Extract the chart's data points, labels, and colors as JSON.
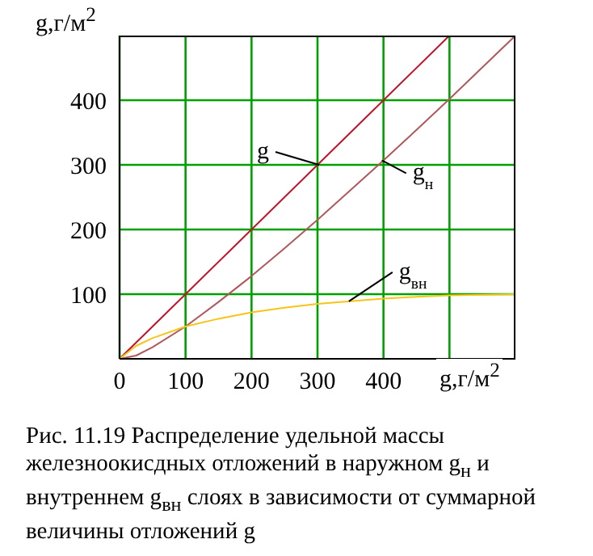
{
  "chart_data": {
    "type": "line",
    "xlabel": "g,г/м$^{2}$",
    "ylabel": "g,г/м$^{2}$",
    "xlim": [
      0,
      600
    ],
    "ylim": [
      0,
      500
    ],
    "xticks": [
      0,
      100,
      200,
      300,
      400,
      {
        "value": 500,
        "label": null
      }
    ],
    "yticks": [
      100,
      200,
      300,
      400
    ],
    "grid": true,
    "marker": "none",
    "line_style": "solid",
    "series": [
      {
        "name": "g",
        "color": "#c0142c",
        "x": [
          0,
          100,
          200,
          300,
          400,
          500
        ],
        "values": [
          0,
          100,
          200,
          300,
          400,
          500
        ]
      },
      {
        "name": "g$_{н}$",
        "color": "#b0585c",
        "x": [
          0,
          25,
          50,
          100,
          150,
          200,
          250,
          300,
          350,
          400,
          450,
          500,
          550,
          600
        ],
        "values": [
          0,
          5,
          18,
          50,
          88,
          128,
          171,
          215,
          261,
          307,
          354,
          402,
          451,
          500
        ]
      },
      {
        "name": "g$_{вн}$",
        "color": "#f5c518",
        "x": [
          0,
          25,
          50,
          100,
          150,
          200,
          250,
          300,
          350,
          400,
          450,
          500,
          550,
          600
        ],
        "values": [
          0,
          20,
          32,
          50,
          62,
          72,
          79,
          85,
          89,
          93,
          96,
          98,
          99,
          100
        ]
      }
    ],
    "annotations": [
      "Рис. 11.19 Распределение удельной массы железноокисдных отложений в наружном g$_{н}$ и внутреннем g$_{вн}$ слоях в зависимости от суммарной величины отложений g"
    ]
  }
}
